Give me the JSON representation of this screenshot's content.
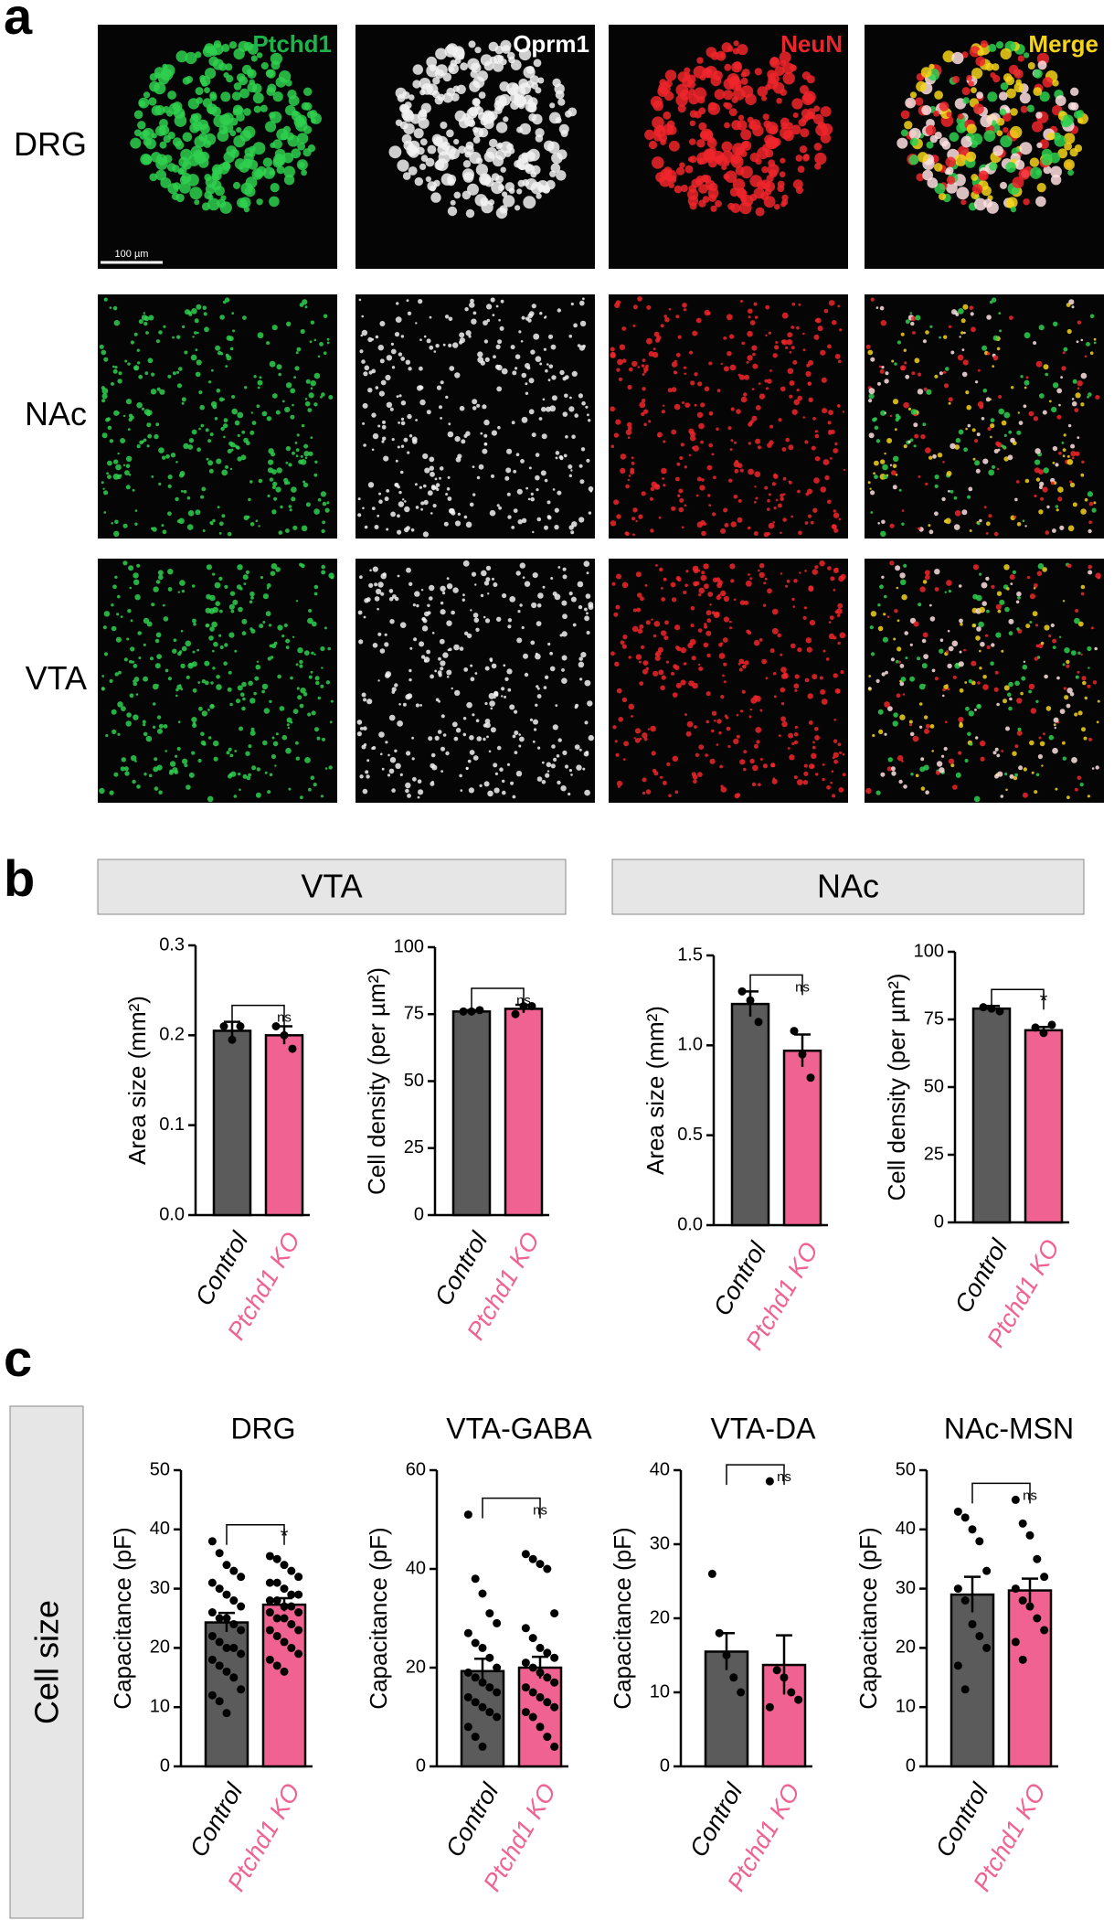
{
  "panel_a": {
    "label": "a",
    "channels": [
      "Ptchd1",
      "Oprm1",
      "NeuN",
      "Merge"
    ],
    "regions": [
      "DRG",
      "NAc",
      "VTA"
    ],
    "scale_bar": "100 µm"
  },
  "panel_b": {
    "label": "b",
    "groups": [
      "VTA",
      "NAc"
    ]
  },
  "panel_c": {
    "label": "c",
    "side_label": "Cell size"
  },
  "chart_data": [
    {
      "type": "bar",
      "ylabel": "Area size (mm²)",
      "categories": [
        "Control",
        "Ptchd1 KO"
      ],
      "colors": [
        "#5b5b5b",
        "#f06292"
      ],
      "values": [
        0.205,
        0.2
      ],
      "errors": [
        0.01,
        0.01
      ],
      "points": [
        [
          0.21,
          0.195,
          0.21
        ],
        [
          0.21,
          0.2,
          0.185
        ]
      ],
      "significance": "ns",
      "ylim": [
        0,
        0.3
      ],
      "yticks": [
        {
          "value": 0,
          "label": "0.0"
        },
        0.1,
        0.2,
        0.3
      ]
    },
    {
      "type": "bar",
      "ylabel": "Cell density  (per µm²)",
      "categories": [
        "Control",
        "Ptchd1 KO"
      ],
      "colors": [
        "#5b5b5b",
        "#f06292"
      ],
      "values": [
        76,
        77
      ],
      "errors": [
        0.5,
        1.5
      ],
      "points": [
        [
          76,
          76,
          76.5
        ],
        [
          75,
          78,
          78
        ]
      ],
      "significance": "ns",
      "ylim": [
        0,
        100
      ],
      "yticks": [
        0,
        25,
        50,
        75,
        100
      ]
    },
    {
      "type": "bar",
      "ylabel": "Area size (mm²)",
      "categories": [
        "Control",
        "Ptchd1 KO"
      ],
      "colors": [
        "#5b5b5b",
        "#f06292"
      ],
      "values": [
        1.23,
        0.97
      ],
      "errors": [
        0.07,
        0.09
      ],
      "points": [
        [
          1.3,
          1.25,
          1.13
        ],
        [
          1.08,
          0.95,
          0.82
        ]
      ],
      "significance": "ns",
      "ylim": [
        0,
        1.5
      ],
      "yticks": [
        {
          "value": 0,
          "label": "0.0"
        },
        0.5,
        {
          "value": 1,
          "label": "1.0"
        },
        1.5
      ]
    },
    {
      "type": "bar",
      "ylabel": "Cell density  (per µm²)",
      "categories": [
        "Control",
        "Ptchd1 KO"
      ],
      "colors": [
        "#5b5b5b",
        "#f06292"
      ],
      "values": [
        79,
        71
      ],
      "errors": [
        1,
        1.2
      ],
      "points": [
        [
          79.5,
          79,
          78
        ],
        [
          72,
          70,
          73
        ]
      ],
      "significance": "*",
      "ylim": [
        0,
        100
      ],
      "yticks": [
        0,
        25,
        50,
        75,
        100
      ]
    },
    {
      "type": "bar",
      "title": "DRG",
      "ylabel": "Capacitance (pF)",
      "categories": [
        "Control",
        "Ptchd1 KO"
      ],
      "colors": [
        "#5b5b5b",
        "#f06292"
      ],
      "values": [
        24.3,
        27.3
      ],
      "errors": [
        1.6,
        1.1
      ],
      "points": [
        [
          38,
          36,
          34,
          33,
          32,
          31,
          30,
          29,
          28,
          27,
          26,
          25,
          25,
          24,
          23,
          22,
          21,
          20,
          20,
          19,
          18,
          17,
          16,
          15,
          13,
          12,
          11,
          9
        ],
        [
          35.5,
          35,
          34,
          33,
          32,
          31,
          31,
          30,
          29,
          29,
          28,
          28,
          27,
          27,
          26,
          26,
          25,
          25,
          24,
          23,
          23,
          22,
          21,
          20,
          19,
          18,
          17,
          16
        ]
      ],
      "significance": "*",
      "ylim": [
        0,
        50
      ],
      "yticks": [
        0,
        10,
        20,
        30,
        40,
        50
      ]
    },
    {
      "type": "bar",
      "title": "VTA-GABA",
      "ylabel": "Capacitance (pF)",
      "categories": [
        "Control",
        "Ptchd1 KO"
      ],
      "colors": [
        "#5b5b5b",
        "#f06292"
      ],
      "values": [
        19.3,
        20
      ],
      "errors": [
        2.5,
        2.2
      ],
      "points": [
        [
          51,
          38,
          35,
          31,
          29,
          27,
          25,
          24,
          22,
          20,
          19,
          18,
          17,
          16,
          15,
          14,
          13,
          12,
          11,
          10,
          8,
          6,
          4
        ],
        [
          43,
          42,
          41,
          40,
          31,
          28,
          26,
          24,
          23,
          22,
          21,
          20,
          19,
          18,
          17,
          16,
          15,
          14,
          13,
          12,
          11,
          10,
          8,
          6,
          4
        ]
      ],
      "significance": "ns",
      "ylim": [
        0,
        60
      ],
      "yticks": [
        0,
        20,
        40,
        60
      ]
    },
    {
      "type": "bar",
      "title": "VTA-DA",
      "ylabel": "Capacitance (pF)",
      "categories": [
        "Control",
        "Ptchd1 KO"
      ],
      "colors": [
        "#5b5b5b",
        "#f06292"
      ],
      "values": [
        15.5,
        13.7
      ],
      "errors": [
        2.5,
        4
      ],
      "points": [
        [
          26,
          18,
          15,
          12,
          10
        ],
        [
          38.5,
          13,
          12,
          10,
          9,
          8
        ]
      ],
      "significance": "ns",
      "ylim": [
        0,
        40
      ],
      "yticks": [
        0,
        10,
        20,
        30,
        40
      ]
    },
    {
      "type": "bar",
      "title": "NAc-MSN",
      "ylabel": "Capacitance (pF)",
      "categories": [
        "Control",
        "Ptchd1 KO"
      ],
      "colors": [
        "#5b5b5b",
        "#f06292"
      ],
      "values": [
        29,
        29.7
      ],
      "errors": [
        3,
        2
      ],
      "points": [
        [
          43,
          42,
          40,
          38,
          33,
          30,
          28,
          24,
          22,
          20,
          17,
          13
        ],
        [
          45,
          41,
          39,
          35,
          32,
          30,
          28,
          27,
          25,
          23,
          21,
          18
        ]
      ],
      "significance": "ns",
      "ylim": [
        0,
        50
      ],
      "yticks": [
        0,
        10,
        20,
        30,
        40,
        50
      ]
    }
  ]
}
